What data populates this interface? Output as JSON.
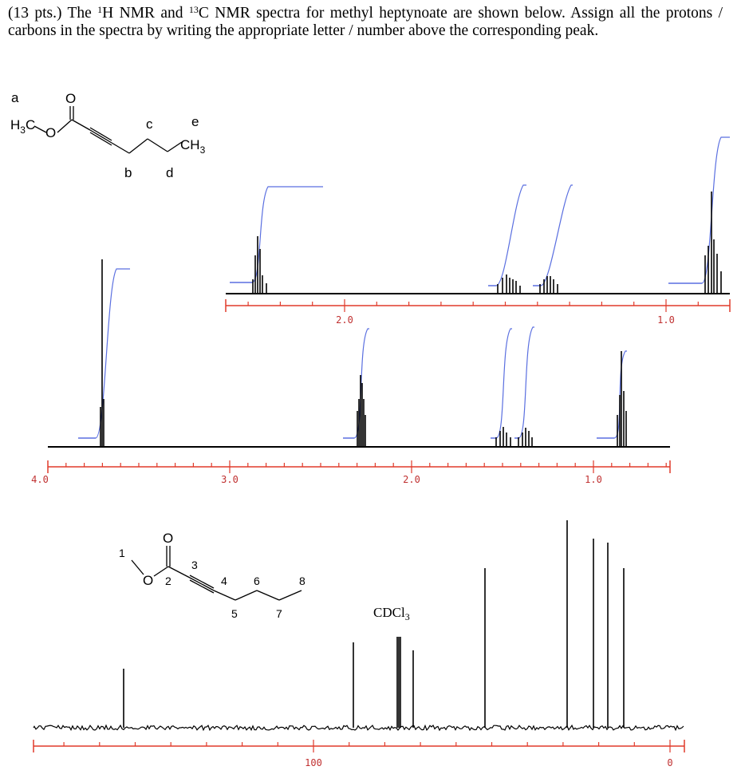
{
  "question": {
    "parts": [
      "(13 pts.)  The ",
      "1",
      "H NMR and ",
      "13",
      "C NMR spectra for methyl heptynoate are shown below.  Assign all the protons / carbons in the spectra by writing the appropriate letter / number above the corresponding peak."
    ]
  },
  "structure_1": {
    "methyl": [
      "H",
      "3",
      "C"
    ],
    "ester_oxygen": "O",
    "carbonyl_oxygen": "O",
    "labels": [
      "a",
      "b",
      "c",
      "d",
      "e"
    ],
    "terminal_methyl": [
      "CH",
      "3"
    ]
  },
  "h_nmr_expanded": {
    "axis_labels": [
      "2.0",
      "1.0"
    ]
  },
  "h_nmr_full": {
    "axis_labels": [
      "4.0",
      "3.0",
      "2.0",
      "1.0"
    ]
  },
  "structure_2": {
    "oxygens": [
      "O",
      "O"
    ],
    "carbon_numbers": [
      "1",
      "2",
      "3",
      "4",
      "5",
      "6",
      "7",
      "8"
    ]
  },
  "c_nmr": {
    "solvent": [
      "CDCl",
      "3"
    ],
    "axis_labels": [
      "100",
      "0"
    ]
  }
}
